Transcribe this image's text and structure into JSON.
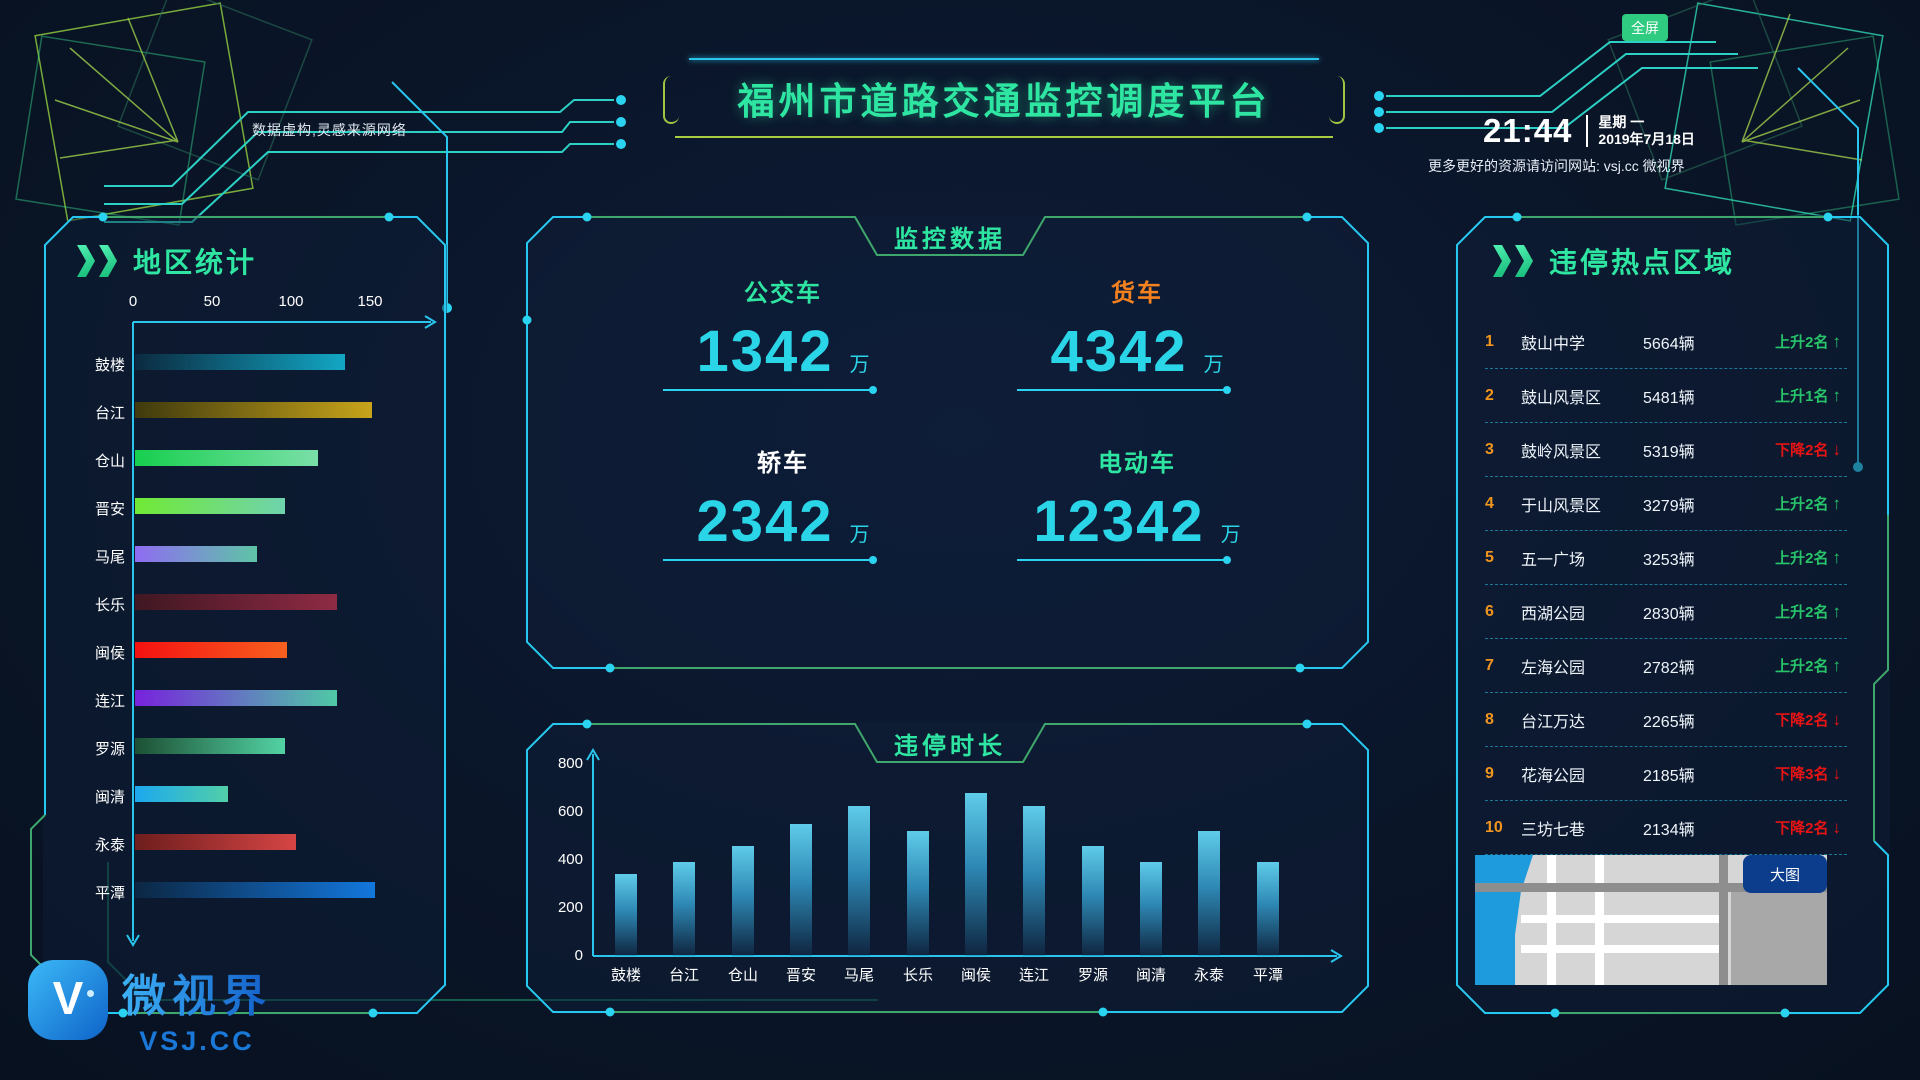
{
  "header": {
    "fullscreen_button": "全屏",
    "title": "福州市道路交通监控调度平台",
    "disclaimer": "数据虚构,灵感来源网络",
    "clock": {
      "time": "21:44",
      "weekday": "星期 一",
      "date": "2019年7月18日"
    },
    "footnote": "更多更好的资源请访问网站: vsj.cc 微视界"
  },
  "region_panel": {
    "title": "地区统计"
  },
  "monitor_panel": {
    "title": "监控数据",
    "stats": [
      {
        "label": "公交车",
        "value": "1342",
        "unit": "万",
        "label_color": "#2ee6a2"
      },
      {
        "label": "货车",
        "value": "4342",
        "unit": "万",
        "label_color": "#f5821f"
      },
      {
        "label": "轿车",
        "value": "2342",
        "unit": "万",
        "label_color": "#ffffff"
      },
      {
        "label": "电动车",
        "value": "12342",
        "unit": "万",
        "label_color": "#2ee6a2"
      }
    ]
  },
  "duration_panel": {
    "title": "违停时长"
  },
  "hotspot_panel": {
    "title": "违停热点区域",
    "map_button": "大图",
    "items": [
      {
        "rank": "1",
        "name": "鼓山中学",
        "count": "5664辆",
        "trend": "上升2名",
        "arrow": "↑",
        "direction": "up"
      },
      {
        "rank": "2",
        "name": "鼓山风景区",
        "count": "5481辆",
        "trend": "上升1名",
        "arrow": "↑",
        "direction": "up"
      },
      {
        "rank": "3",
        "name": "鼓岭风景区",
        "count": "5319辆",
        "trend": "下降2名",
        "arrow": "↓",
        "direction": "down"
      },
      {
        "rank": "4",
        "name": "于山风景区",
        "count": "3279辆",
        "trend": "上升2名",
        "arrow": "↑",
        "direction": "up"
      },
      {
        "rank": "5",
        "name": "五一广场",
        "count": "3253辆",
        "trend": "上升2名",
        "arrow": "↑",
        "direction": "up"
      },
      {
        "rank": "6",
        "name": "西湖公园",
        "count": "2830辆",
        "trend": "上升2名",
        "arrow": "↑",
        "direction": "up"
      },
      {
        "rank": "7",
        "name": "左海公园",
        "count": "2782辆",
        "trend": "上升2名",
        "arrow": "↑",
        "direction": "up"
      },
      {
        "rank": "8",
        "name": "台江万达",
        "count": "2265辆",
        "trend": "下降2名",
        "arrow": "↓",
        "direction": "down"
      },
      {
        "rank": "9",
        "name": "花海公园",
        "count": "2185辆",
        "trend": "下降3名",
        "arrow": "↓",
        "direction": "down"
      },
      {
        "rank": "10",
        "name": "三坊七巷",
        "count": "2134辆",
        "trend": "下降2名",
        "arrow": "↓",
        "direction": "down"
      }
    ]
  },
  "logo": {
    "brand": "微视界",
    "site": "VSJ.CC"
  },
  "colors": {
    "accent_green": "#2ee6a2",
    "accent_cyan": "#2bd5e8",
    "accent_orange": "#f5821f",
    "up_green": "#27c46a",
    "down_red": "#e81414",
    "border_cyan": "#27c8f0",
    "border_green": "#3fa76b"
  },
  "chart_data": [
    {
      "type": "bar",
      "orientation": "horizontal",
      "title": "地区统计",
      "categories": [
        "鼓楼",
        "台江",
        "仓山",
        "晋安",
        "马尾",
        "长乐",
        "闽侯",
        "连江",
        "罗源",
        "闽清",
        "永泰",
        "平潭"
      ],
      "values": [
        133,
        150,
        116,
        95,
        77,
        128,
        96,
        128,
        95,
        59,
        102,
        152
      ],
      "xticks": [
        0,
        50,
        100,
        150
      ],
      "xlim": [
        0,
        165
      ],
      "grid": false,
      "bar_gradients": [
        [
          "#0b2a40",
          "#12a7c4"
        ],
        [
          "#3f3a0e",
          "#c7a41a"
        ],
        [
          "#17cf4e",
          "#7adfa8"
        ],
        [
          "#71ea35",
          "#6fd3ad"
        ],
        [
          "#8f6cf2",
          "#5ec4a6"
        ],
        [
          "#3f1722",
          "#8f2a44"
        ],
        [
          "#f41111",
          "#f8601f"
        ],
        [
          "#7822dd",
          "#4fc9a6"
        ],
        [
          "#1d5034",
          "#52d3a4"
        ],
        [
          "#1ba8ef",
          "#52cfa8"
        ],
        [
          "#6e1d1d",
          "#d64545"
        ],
        [
          "#0c2743",
          "#1377dd"
        ]
      ]
    },
    {
      "type": "bar",
      "orientation": "vertical",
      "title": "违停时长",
      "categories": [
        "鼓楼",
        "台江",
        "仓山",
        "晋安",
        "马尾",
        "长乐",
        "闽侯",
        "连江",
        "罗源",
        "闽清",
        "永泰",
        "平潭"
      ],
      "values": [
        340,
        390,
        460,
        550,
        625,
        520,
        680,
        625,
        460,
        390,
        520,
        390
      ],
      "yticks": [
        0,
        200,
        400,
        600,
        800
      ],
      "ylim": [
        0,
        870
      ],
      "grid": false
    }
  ]
}
